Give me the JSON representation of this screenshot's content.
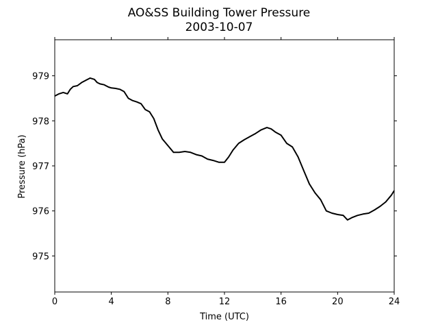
{
  "chart_data": {
    "type": "line",
    "title": "AO&SS Building Tower Pressure",
    "subtitle": "2003-10-07",
    "xlabel": "Time (UTC)",
    "ylabel": "Pressure (hPa)",
    "xlim": [
      0,
      24
    ],
    "ylim": [
      974.2,
      979.8
    ],
    "xticks": [
      0,
      4,
      8,
      12,
      16,
      20,
      24
    ],
    "xtick_labels": [
      "0",
      "4",
      "8",
      "12",
      "16",
      "20",
      "24"
    ],
    "yticks": [
      975,
      976,
      977,
      978,
      979
    ],
    "ytick_labels": [
      "975",
      "976",
      "977",
      "978",
      "979"
    ],
    "grid": false,
    "line_color": "#000000",
    "series": [
      {
        "x": [
          0,
          0.3,
          0.6,
          0.9,
          1.1,
          1.3,
          1.6,
          1.9,
          2.2,
          2.5,
          2.8,
          3.0,
          3.2,
          3.5,
          3.8,
          4.0,
          4.3,
          4.6,
          4.9,
          5.2,
          5.5,
          5.8,
          6.1,
          6.4,
          6.7,
          7.0,
          7.3,
          7.6,
          8.0,
          8.4,
          8.8,
          9.2,
          9.6,
          10.0,
          10.4,
          10.8,
          11.2,
          11.6,
          12.0,
          12.3,
          12.6,
          13.0,
          13.4,
          13.8,
          14.2,
          14.6,
          15.0,
          15.3,
          15.6,
          16.0,
          16.4,
          16.8,
          17.2,
          17.6,
          18.0,
          18.4,
          18.8,
          19.2,
          19.6,
          20.0,
          20.4,
          20.7,
          21.0,
          21.4,
          21.8,
          22.2,
          22.6,
          23.0,
          23.4,
          23.8,
          24.0
        ],
        "y": [
          978.55,
          978.6,
          978.63,
          978.6,
          978.7,
          978.76,
          978.78,
          978.85,
          978.9,
          978.95,
          978.92,
          978.85,
          978.82,
          978.8,
          978.75,
          978.73,
          978.72,
          978.7,
          978.65,
          978.5,
          978.45,
          978.42,
          978.38,
          978.25,
          978.2,
          978.05,
          977.8,
          977.6,
          977.45,
          977.3,
          977.3,
          977.32,
          977.3,
          977.25,
          977.22,
          977.15,
          977.12,
          977.08,
          977.08,
          977.2,
          977.35,
          977.5,
          977.58,
          977.65,
          977.72,
          977.8,
          977.85,
          977.82,
          977.75,
          977.68,
          977.5,
          977.42,
          977.2,
          976.9,
          976.6,
          976.4,
          976.25,
          976.0,
          975.95,
          975.92,
          975.9,
          975.8,
          975.85,
          975.9,
          975.93,
          975.95,
          976.02,
          976.1,
          976.2,
          976.35,
          976.45
        ]
      }
    ]
  }
}
